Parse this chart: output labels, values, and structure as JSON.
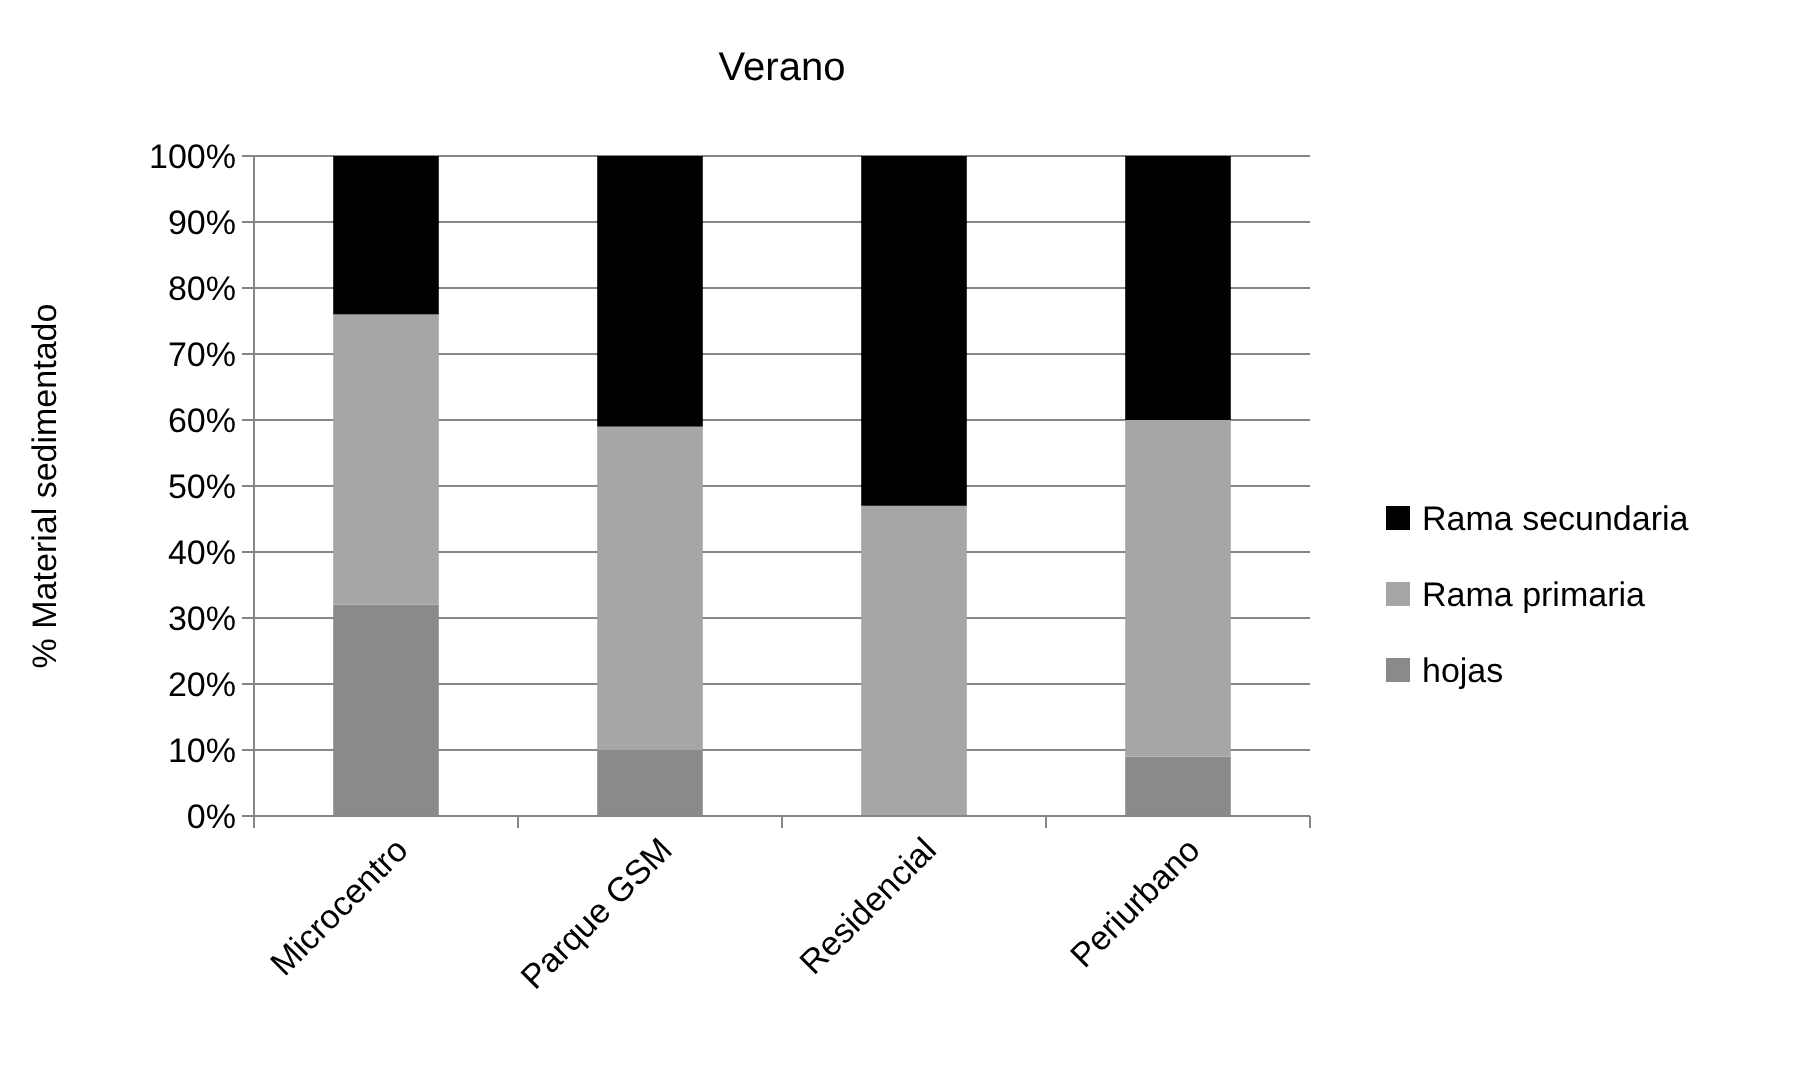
{
  "chart_data": {
    "type": "bar",
    "title": "Verano",
    "ylabel": "% Material sedimentado",
    "categories": [
      "Microcentro",
      "Parque GSM",
      "Residencial",
      "Periurbano"
    ],
    "stacked": true,
    "series": [
      {
        "name": "hojas",
        "color": "#8a8a8a",
        "values": [
          32,
          10,
          0,
          9
        ]
      },
      {
        "name": "Rama primaria",
        "color": "#a6a6a6",
        "values": [
          44,
          49,
          47,
          51
        ]
      },
      {
        "name": "Rama secundaria",
        "color": "#000000",
        "values": [
          24,
          41,
          53,
          40
        ]
      }
    ],
    "ylim": [
      0,
      100
    ],
    "yticks": [
      {
        "value": 0,
        "label": "0%"
      },
      {
        "value": 10,
        "label": "10%"
      },
      {
        "value": 20,
        "label": "20%"
      },
      {
        "value": 30,
        "label": "30%"
      },
      {
        "value": 40,
        "label": "40%"
      },
      {
        "value": 50,
        "label": "50%"
      },
      {
        "value": 60,
        "label": "60%"
      },
      {
        "value": 70,
        "label": "70%"
      },
      {
        "value": 80,
        "label": "80%"
      },
      {
        "value": 90,
        "label": "90%"
      },
      {
        "value": 100,
        "label": "100%"
      }
    ],
    "grid": "y",
    "legend": "right"
  }
}
